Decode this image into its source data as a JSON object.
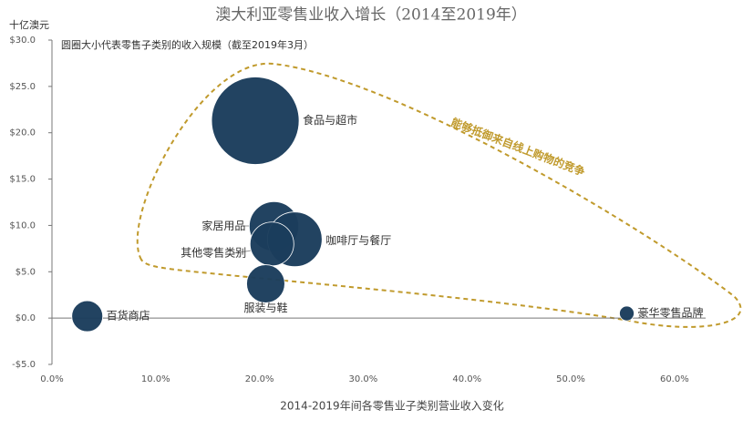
{
  "chart_data": {
    "type": "bubble",
    "title": "澳大利亚零售业收入增长（2014至2019年）",
    "y_axis_label": "十亿澳元",
    "x_axis_label": "2014-2019年间各零售业子类别营业收入变化",
    "note": "圆圈大小代表零售子类别的收入规模（截至2019年3月）",
    "annotation": "能够抵御来自线上购物的竞争",
    "color": "#1b3d5c",
    "annotation_color": "#c09a2c",
    "categories": [
      "百货商店",
      "食品与超市",
      "家居用品",
      "咖啡厅与餐厅",
      "其他零售类别",
      "服装与鞋",
      "豪华零售品牌"
    ],
    "x": [
      3.4,
      19.6,
      21.4,
      23.4,
      21.2,
      20.6,
      55.4
    ],
    "values": [
      0.2,
      21.3,
      9.9,
      8.5,
      8.0,
      3.7,
      0.5
    ],
    "sizes": [
      12.5,
      100,
      32,
      39,
      25,
      19,
      2.8
    ],
    "xlim": [
      0,
      63
    ],
    "ylim": [
      -5,
      30
    ],
    "xticks": [
      {
        "value": 0,
        "label": "0.0%"
      },
      {
        "value": 10,
        "label": "10.0%"
      },
      {
        "value": 20,
        "label": "20.0%"
      },
      {
        "value": 30,
        "label": "30.0%"
      },
      {
        "value": 40,
        "label": "40.0%"
      },
      {
        "value": 50,
        "label": "50.0%"
      },
      {
        "value": 60,
        "label": "60.0%"
      }
    ],
    "yticks": [
      {
        "value": -5,
        "label": "-$5.0"
      },
      {
        "value": 0,
        "label": "$0.0"
      },
      {
        "value": 5,
        "label": "$5.0"
      },
      {
        "value": 10,
        "label": "$10.0"
      },
      {
        "value": 15,
        "label": "$15.0"
      },
      {
        "value": 20,
        "label": "$20.0"
      },
      {
        "value": 25,
        "label": "$25.0"
      },
      {
        "value": 30,
        "label": "$30.0"
      }
    ]
  }
}
